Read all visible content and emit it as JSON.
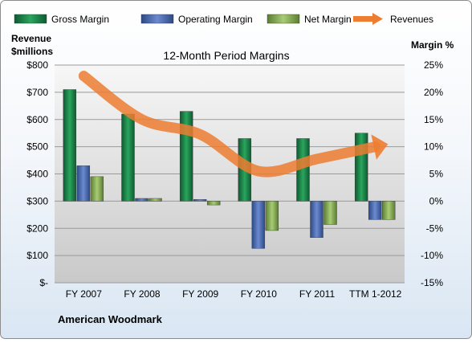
{
  "chart_data": {
    "type": "bar",
    "title": "12-Month Period Margins",
    "company": "American Woodmark",
    "left_axis_label": [
      "Revenue",
      "$millions"
    ],
    "right_axis_label": "Margin %",
    "categories": [
      "FY 2007",
      "FY 2008",
      "FY 2009",
      "FY 2010",
      "FY 2011",
      "TTM 1-2012"
    ],
    "left_ticks": [
      "$-",
      "$100",
      "$200",
      "$300",
      "$400",
      "$500",
      "$600",
      "$700",
      "$800"
    ],
    "right_ticks": [
      "-15%",
      "-10%",
      "-5%",
      "0%",
      "5%",
      "10%",
      "15%",
      "20%",
      "25%"
    ],
    "left_ylim": [
      0,
      800
    ],
    "right_ylim": [
      -15,
      25
    ],
    "grid": true,
    "legend_position": "top",
    "series": [
      {
        "name": "Gross Margin",
        "kind": "bar",
        "axis": "right",
        "color": "#1e8a4c",
        "values": [
          20.5,
          16.0,
          16.5,
          11.5,
          11.5,
          12.5
        ]
      },
      {
        "name": "Operating Margin",
        "kind": "bar",
        "axis": "right",
        "color": "#4f6fb3",
        "values": [
          6.5,
          0.5,
          0.3,
          -8.7,
          -6.7,
          -3.4
        ]
      },
      {
        "name": "Net Margin",
        "kind": "bar",
        "axis": "right",
        "color": "#8db35c",
        "values": [
          4.5,
          0.5,
          -0.7,
          -5.4,
          -4.3,
          -3.4
        ]
      },
      {
        "name": "Revenues",
        "kind": "line",
        "axis": "left",
        "color": "#ed7d31",
        "values": [
          760,
          600,
          545,
          410,
          455,
          500
        ]
      }
    ]
  }
}
